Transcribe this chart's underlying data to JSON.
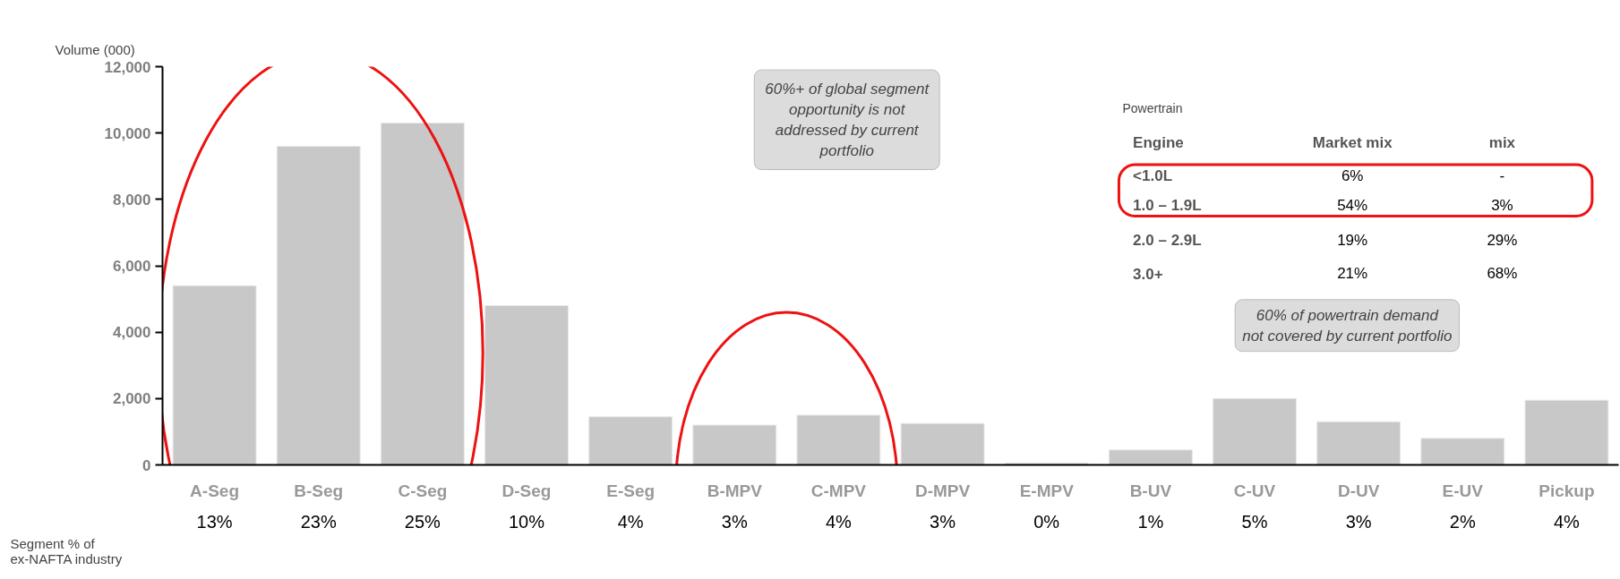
{
  "chart_data": {
    "type": "bar",
    "ylabel": "Volume (000)",
    "categories": [
      "A-Seg",
      "B-Seg",
      "C-Seg",
      "D-Seg",
      "E-Seg",
      "B-MPV",
      "C-MPV",
      "D-MPV",
      "E-MPV",
      "B-UV",
      "C-UV",
      "D-UV",
      "E-UV",
      "Pickup"
    ],
    "values": [
      5400,
      9600,
      10300,
      4800,
      1450,
      1200,
      1500,
      1250,
      50,
      450,
      2000,
      1300,
      800,
      1950
    ],
    "color": "#c8c8c8",
    "ylim": [
      0,
      12000
    ],
    "yticks": [
      0,
      {
        "value": 2000,
        "label": "2,000"
      },
      {
        "value": 4000,
        "label": "4,000"
      },
      {
        "value": 6000,
        "label": "6,000"
      },
      {
        "value": 8000,
        "label": "8,000"
      },
      {
        "value": 10000,
        "label": "10,000"
      },
      {
        "value": 12000,
        "label": "12,000"
      }
    ],
    "grid": false,
    "annotations": [
      "60%+ of global segment\nopportunity is not\naddressed by current\nportfolio",
      "60% of powertrain demand\nnot covered by current portfolio",
      "Powertrain",
      "Engine",
      "Market mix",
      "mix",
      "<1.0L",
      "6%",
      "-",
      "1.0 – 1.9L",
      "54%",
      "3%",
      "2.0 – 2.9L",
      "19%",
      "29%",
      "3.0+",
      "21%",
      "68%",
      "Segment % of\nex-NAFTA industry",
      "13%",
      "23%",
      "25%",
      "10%",
      "4%",
      "3%",
      "4%",
      "3%",
      "0%",
      "1%",
      "5%",
      "3%",
      "2%",
      "4%"
    ]
  }
}
